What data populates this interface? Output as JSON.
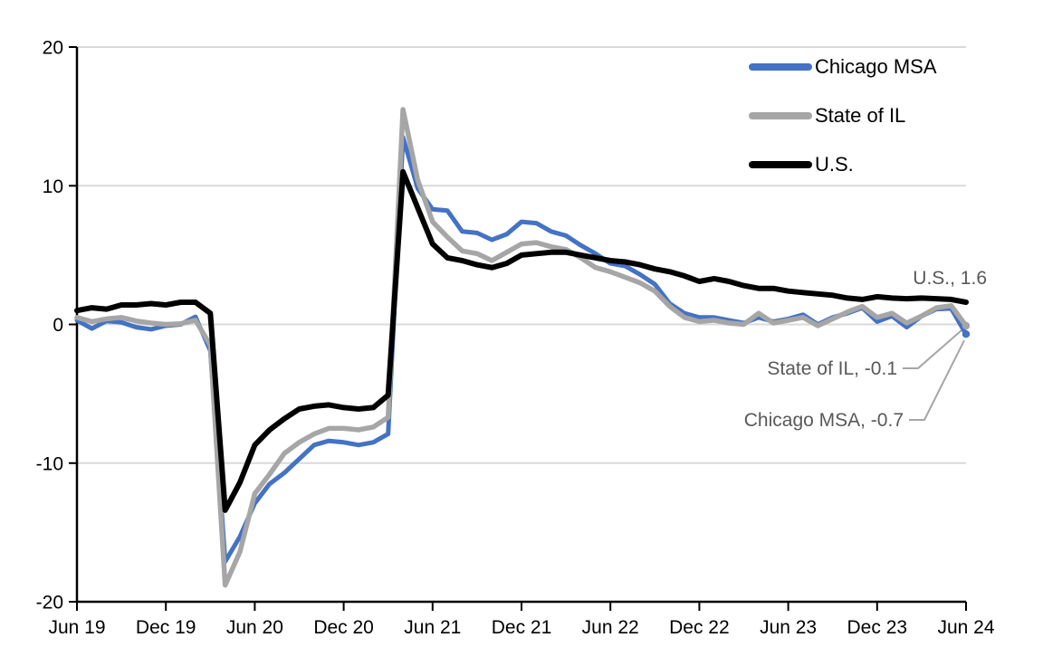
{
  "chart_data": {
    "type": "line",
    "title": "",
    "frequency": "monthly",
    "x_range": [
      "Jun 2019",
      "Jun 2024"
    ],
    "x_tick_labels": [
      "Jun 19",
      "Dec 19",
      "Jun 20",
      "Dec 20",
      "Jun 21",
      "Dec 21",
      "Jun 22",
      "Dec 22",
      "Jun 23",
      "Dec 23",
      "Jun 24"
    ],
    "ylim": [
      -20,
      20
    ],
    "yticks": [
      20,
      10,
      0,
      -10,
      -20
    ],
    "gridlines": [
      20,
      10,
      0,
      -10
    ],
    "grid_on": true,
    "legend_position": "top-right",
    "axis_color": "#000000",
    "gridline_color": "#D9D9D9",
    "label_color": "#000000",
    "annotation_color": "#595959",
    "leader_line_color": "#A6A6A6",
    "series": [
      {
        "name": "Chicago MSA",
        "color": "#4472C4",
        "stroke_width": 5,
        "end_dot": true,
        "final_value": -0.7,
        "values": [
          0.3,
          -0.3,
          0.25,
          0.15,
          -0.2,
          -0.35,
          -0.1,
          0,
          0.55,
          -1.9,
          -17.1,
          -15.3,
          -12.9,
          -11.5,
          -10.7,
          -9.7,
          -8.7,
          -8.4,
          -8.5,
          -8.7,
          -8.5,
          -7.9,
          13.5,
          9.8,
          8.3,
          8.2,
          6.7,
          6.6,
          6.1,
          6.5,
          7.4,
          7.3,
          6.7,
          6.4,
          5.7,
          5.1,
          4.4,
          4.2,
          3.6,
          2.9,
          1.5,
          0.8,
          0.5,
          0.5,
          0.3,
          0.1,
          0.5,
          0.2,
          0.4,
          0.7,
          0,
          0.5,
          0.8,
          1.2,
          0.2,
          0.6,
          -0.2,
          0.6,
          1.1,
          1.15,
          -0.7
        ]
      },
      {
        "name": "State of IL",
        "color": "#A6A6A6",
        "stroke_width": 5.5,
        "end_dot": true,
        "final_value": -0.1,
        "values": [
          0.5,
          0.2,
          0.4,
          0.5,
          0.25,
          0.1,
          0,
          0.05,
          0.3,
          -1.5,
          -18.8,
          -16.4,
          -12.2,
          -10.8,
          -9.3,
          -8.5,
          -7.9,
          -7.5,
          -7.5,
          -7.6,
          -7.4,
          -6.7,
          15.5,
          10.4,
          7.4,
          6.3,
          5.3,
          5.1,
          4.6,
          5.2,
          5.8,
          5.9,
          5.6,
          5.4,
          4.8,
          4.1,
          3.8,
          3.4,
          3.0,
          2.4,
          1.3,
          0.5,
          0.2,
          0.3,
          0.1,
          0,
          0.8,
          0.1,
          0.3,
          0.5,
          -0.1,
          0.4,
          0.9,
          1.3,
          0.5,
          0.8,
          0.1,
          0.6,
          1.2,
          1.35,
          -0.1
        ]
      },
      {
        "name": "U.S.",
        "color": "#000000",
        "stroke_width": 6,
        "end_dot": false,
        "final_value": 1.6,
        "values": [
          1.0,
          1.2,
          1.1,
          1.4,
          1.4,
          1.5,
          1.4,
          1.6,
          1.6,
          0.8,
          -13.4,
          -11.4,
          -8.7,
          -7.6,
          -6.8,
          -6.1,
          -5.9,
          -5.8,
          -6.0,
          -6.1,
          -6.0,
          -5.1,
          11.0,
          8.4,
          5.8,
          4.8,
          4.6,
          4.3,
          4.1,
          4.4,
          5.0,
          5.1,
          5.2,
          5.2,
          5.0,
          4.8,
          4.6,
          4.5,
          4.3,
          4.0,
          3.8,
          3.5,
          3.1,
          3.3,
          3.1,
          2.8,
          2.6,
          2.6,
          2.4,
          2.3,
          2.2,
          2.1,
          1.9,
          1.8,
          2.0,
          1.9,
          1.85,
          1.9,
          1.85,
          1.8,
          1.6
        ]
      }
    ],
    "annotations": [
      {
        "series": "U.S.",
        "text": "U.S., 1.6"
      },
      {
        "series": "State of IL",
        "text": "State of IL, -0.1"
      },
      {
        "series": "Chicago MSA",
        "text": "Chicago MSA, -0.7"
      }
    ]
  }
}
